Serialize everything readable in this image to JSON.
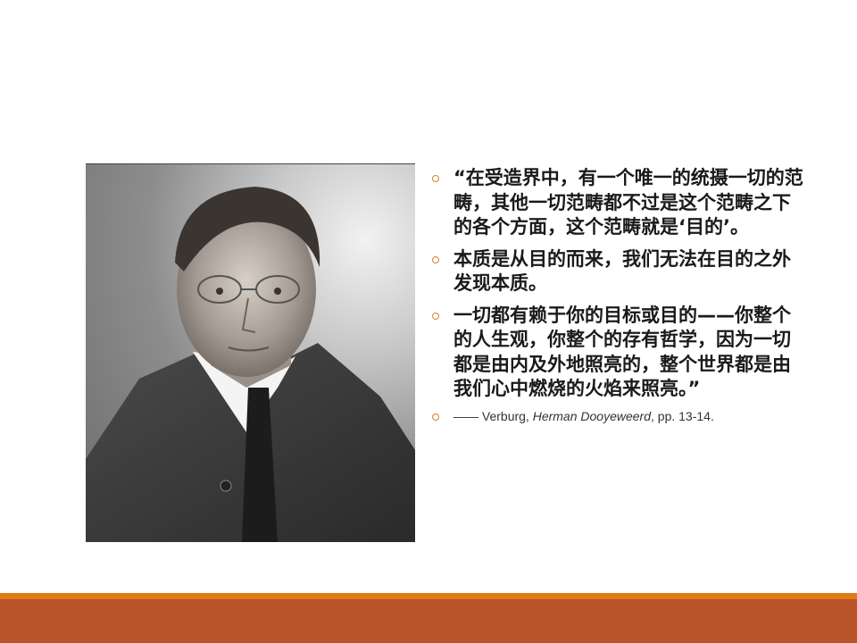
{
  "photo": {
    "description_icon": "portrait-photo"
  },
  "bullets": [
    {
      "text": "“在受造界中，有一个唯一的统摄一切的范畴，其他一切范畴都不过是这个范畴之下的各个方面，这个范畴就是‘目的’。"
    },
    {
      "text": "本质是从目的而来，我们无法在目的之外发现本质。"
    },
    {
      "text": "一切都有赖于你的目标或目的——你整个的人生观，你整个的存有哲学，因为一切都是由内及外地照亮的，整个世界都是由我们心中燃烧的火焰来照亮。”"
    }
  ],
  "citation": {
    "prefix": "—— Verburg, ",
    "title": "Herman Dooyeweerd",
    "suffix": ", pp. 13-14."
  },
  "colors": {
    "accent_orange": "#e07b17",
    "footer_brown": "#b9532a",
    "bullet_marker": "#d9822b"
  }
}
